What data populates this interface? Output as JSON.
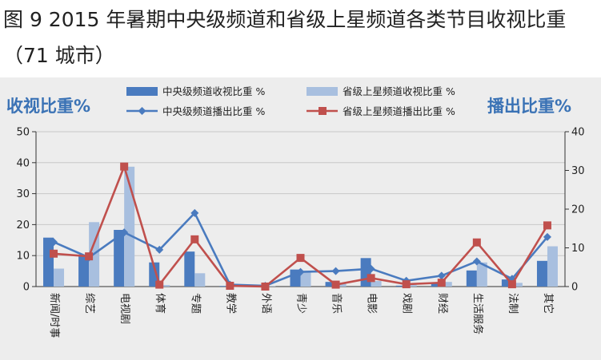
{
  "title": "图 9 2015 年暑期中央级频道和省级上星频道各类节目收视比重（71 城市）",
  "colors": {
    "central_view": "#4a7bbf",
    "provincial_view": "#a8bfdf",
    "central_broadcast": "#4a7bbf",
    "provincial_broadcast": "#c0504d",
    "axis_title": "#3a72b5",
    "panel": "#ededed"
  },
  "chart_data": {
    "type": "bar",
    "categories": [
      "新闻/时事",
      "综艺",
      "电视剧",
      "体育",
      "专题",
      "教学",
      "外语",
      "青少",
      "音乐",
      "电影",
      "戏剧",
      "财经",
      "生活服务",
      "法制",
      "其它"
    ],
    "left_axis_title": "收视比重%",
    "right_axis_title": "播出比重%",
    "ylim_left": [
      0,
      50
    ],
    "yticks_left": [
      0,
      10,
      20,
      30,
      40,
      50
    ],
    "ylim_right": [
      0,
      40
    ],
    "yticks_right": [
      0,
      10,
      20,
      30,
      40
    ],
    "grid": true,
    "legend_placement": "top",
    "series": [
      {
        "name": "中央级频道收视比重 %",
        "type": "bar",
        "axis": "left",
        "color_key": "central_view",
        "values": [
          15.8,
          10.2,
          18.3,
          7.8,
          11.3,
          0.2,
          0.1,
          5.5,
          1.5,
          9.2,
          0.3,
          1.3,
          5.2,
          2.3,
          8.3
        ]
      },
      {
        "name": "省级上星频道收视比重 %",
        "type": "bar",
        "axis": "left",
        "color_key": "provincial_view",
        "values": [
          5.8,
          20.8,
          38.7,
          0.5,
          4.3,
          0.1,
          0.1,
          5.0,
          1.0,
          1.8,
          0.5,
          1.5,
          7.8,
          1.2,
          13.0
        ]
      },
      {
        "name": "中央级频道播出比重 %",
        "type": "line",
        "axis": "right",
        "color_key": "central_broadcast",
        "marker": "diamond",
        "values": [
          11.5,
          7.5,
          14.0,
          9.5,
          19.0,
          0.5,
          0.2,
          3.8,
          4.0,
          4.6,
          1.5,
          2.8,
          6.5,
          2.0,
          12.8
        ]
      },
      {
        "name": "省级上星频道播出比重 %",
        "type": "line",
        "axis": "right",
        "color_key": "provincial_broadcast",
        "marker": "square",
        "values": [
          8.5,
          7.8,
          31.0,
          0.5,
          12.2,
          0.2,
          0.0,
          7.4,
          0.5,
          2.2,
          0.6,
          1.0,
          11.4,
          0.6,
          15.8
        ]
      }
    ]
  }
}
